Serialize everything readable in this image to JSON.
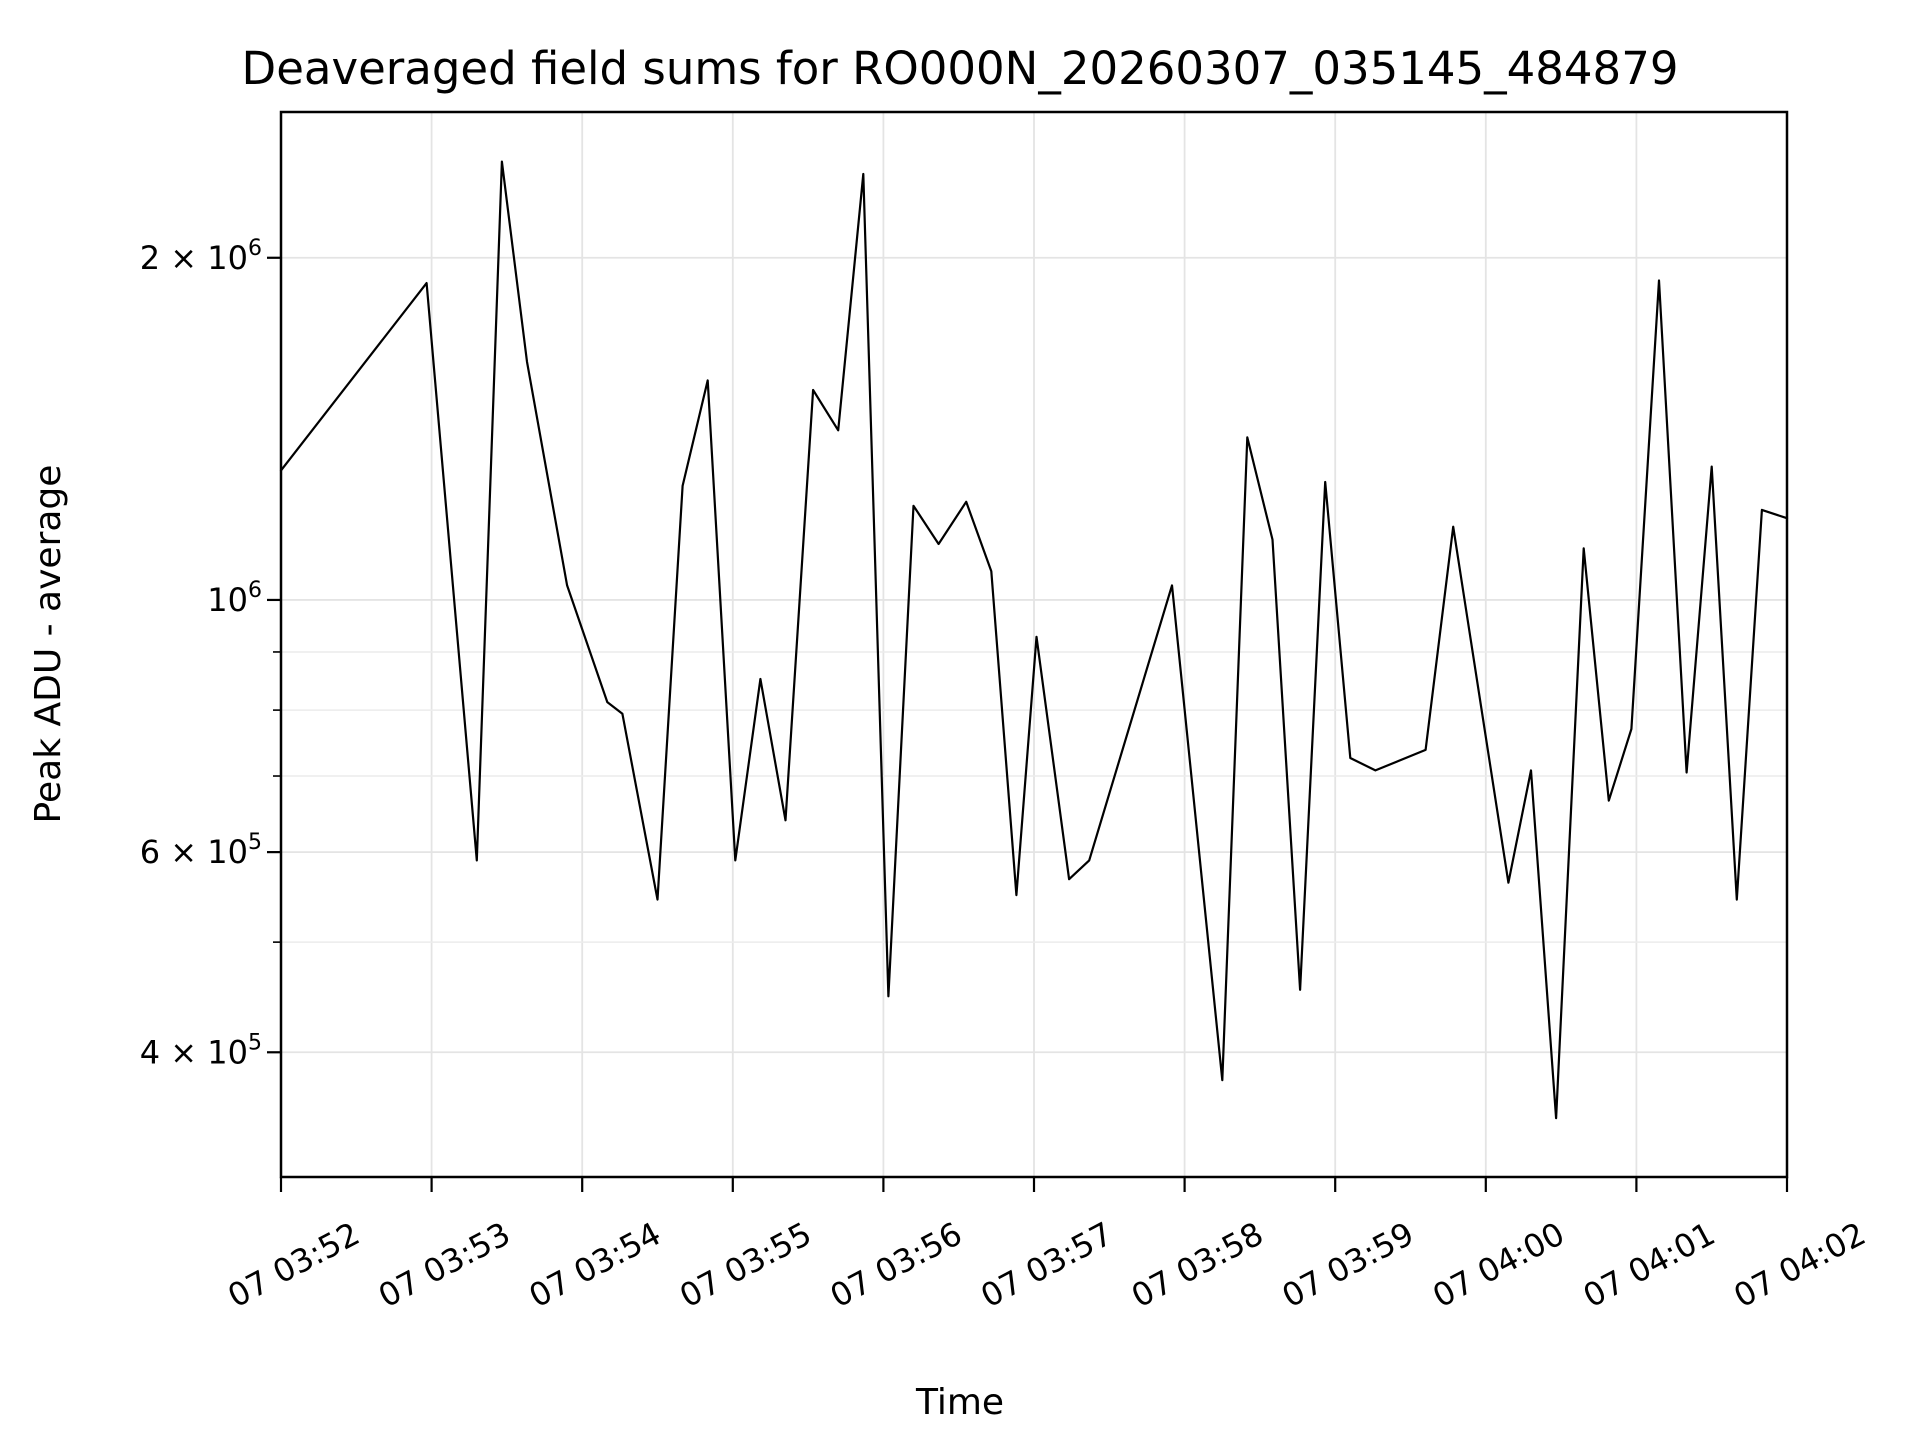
{
  "chart_data": {
    "type": "line",
    "title": "Deaveraged field sums for RO000N_20260307_035145_484879",
    "xlabel": "Time",
    "ylabel": "Peak ADU - average",
    "yscale": "log",
    "grid": "on",
    "legend_position": "none",
    "background_color": "#ffffff",
    "line_color": "#000000",
    "grid_color_major": "#e4e4e4",
    "grid_color_minor": "#ececec",
    "x_unit": "seconds after 07 03:52:00",
    "xlim_seconds": [
      0,
      600
    ],
    "ylim": [
      310700,
      2687000
    ],
    "x_ticks": [
      {
        "t": 0,
        "label": "07 03:52"
      },
      {
        "t": 60,
        "label": "07 03:53"
      },
      {
        "t": 120,
        "label": "07 03:54"
      },
      {
        "t": 180,
        "label": "07 03:55"
      },
      {
        "t": 240,
        "label": "07 03:56"
      },
      {
        "t": 300,
        "label": "07 03:57"
      },
      {
        "t": 360,
        "label": "07 03:58"
      },
      {
        "t": 420,
        "label": "07 03:59"
      },
      {
        "t": 480,
        "label": "07 04:00"
      },
      {
        "t": 540,
        "label": "07 04:01"
      },
      {
        "t": 600,
        "label": "07 04:02"
      }
    ],
    "y_ticks": [
      {
        "value": 2000000,
        "labeled": true,
        "major": false,
        "label_mantissa": "2 × 10",
        "label_exponent": "6"
      },
      {
        "value": 1000000,
        "labeled": true,
        "major": true,
        "label_mantissa": "10",
        "label_exponent": "6"
      },
      {
        "value": 900000,
        "labeled": false,
        "major": false
      },
      {
        "value": 800000,
        "labeled": false,
        "major": false
      },
      {
        "value": 700000,
        "labeled": false,
        "major": false
      },
      {
        "value": 600000,
        "labeled": true,
        "major": false,
        "label_mantissa": "6 × 10",
        "label_exponent": "5"
      },
      {
        "value": 500000,
        "labeled": false,
        "major": false
      },
      {
        "value": 400000,
        "labeled": true,
        "major": false,
        "label_mantissa": "4 × 10",
        "label_exponent": "5"
      }
    ],
    "series": [
      {
        "name": "Peak ADU - average",
        "color": "#000000",
        "points_t_seconds_value": [
          [
            0,
            1300000
          ],
          [
            58,
            1900000
          ],
          [
            78,
            590000
          ],
          [
            88,
            2430000
          ],
          [
            98,
            1620000
          ],
          [
            114,
            1030000
          ],
          [
            130,
            813000
          ],
          [
            136,
            794000
          ],
          [
            150,
            545000
          ],
          [
            160,
            1260000
          ],
          [
            170,
            1560000
          ],
          [
            181,
            590000
          ],
          [
            191,
            852000
          ],
          [
            201,
            640000
          ],
          [
            212,
            1530000
          ],
          [
            222,
            1410000
          ],
          [
            232,
            2370000
          ],
          [
            242,
            448000
          ],
          [
            252,
            1210000
          ],
          [
            262,
            1120000
          ],
          [
            273,
            1220000
          ],
          [
            283,
            1060000
          ],
          [
            293,
            550000
          ],
          [
            301,
            928000
          ],
          [
            314,
            568000
          ],
          [
            322,
            590000
          ],
          [
            355,
            1030000
          ],
          [
            375,
            378000
          ],
          [
            385,
            1390000
          ],
          [
            395,
            1130000
          ],
          [
            406,
            454000
          ],
          [
            416,
            1270000
          ],
          [
            426,
            726000
          ],
          [
            436,
            708000
          ],
          [
            456,
            738000
          ],
          [
            467,
            1160000
          ],
          [
            489,
            564000
          ],
          [
            498,
            708000
          ],
          [
            508,
            350000
          ],
          [
            519,
            1110000
          ],
          [
            529,
            666000
          ],
          [
            538,
            770000
          ],
          [
            549,
            1910000
          ],
          [
            560,
            705000
          ],
          [
            570,
            1310000
          ],
          [
            580,
            545000
          ],
          [
            590,
            1200000
          ],
          [
            600,
            1180000
          ]
        ]
      }
    ]
  }
}
